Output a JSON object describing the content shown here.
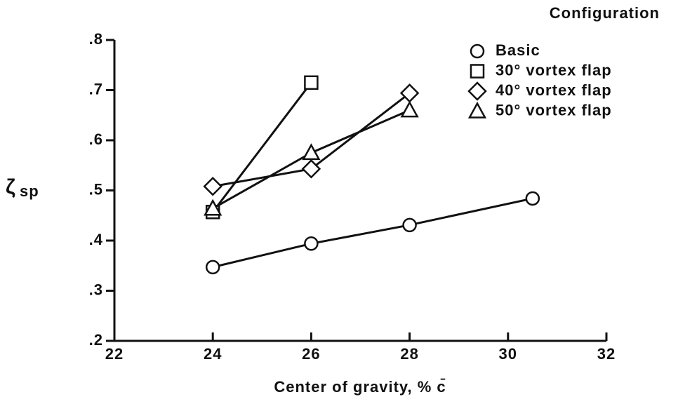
{
  "chart_data": {
    "type": "line",
    "xlabel": "Center of gravity, % c̄",
    "ylabel": {
      "symbol": "ζ",
      "subscript": "sp"
    },
    "legend_title": "Configuration",
    "legend": "upper right",
    "xlim": [
      22,
      32
    ],
    "xticks": [
      22,
      24,
      26,
      28,
      30,
      32
    ],
    "ylim": [
      0.2,
      0.8
    ],
    "yticks": [
      {
        "value": 0.2,
        "label": ".2"
      },
      {
        "value": 0.3,
        "label": ".3"
      },
      {
        "value": 0.4,
        "label": ".4"
      },
      {
        "value": 0.5,
        "label": ".5"
      },
      {
        "value": 0.6,
        "label": ".6"
      },
      {
        "value": 0.7,
        "label": ".7"
      },
      {
        "value": 0.8,
        "label": ".8"
      }
    ],
    "series": [
      {
        "name": "Basic",
        "marker": "circle",
        "color": "#111111",
        "x": [
          24,
          26,
          28,
          30.5
        ],
        "values": [
          0.347,
          0.394,
          0.431,
          0.484
        ]
      },
      {
        "name": "30° vortex flap",
        "marker": "square",
        "color": "#111111",
        "x": [
          24,
          26
        ],
        "values": [
          0.457,
          0.715
        ]
      },
      {
        "name": "40° vortex flap",
        "marker": "diamond",
        "color": "#111111",
        "x": [
          24,
          26,
          28
        ],
        "values": [
          0.508,
          0.543,
          0.694
        ]
      },
      {
        "name": "50° vortex flap",
        "marker": "triangle",
        "color": "#111111",
        "x": [
          24,
          26,
          28
        ],
        "values": [
          0.464,
          0.575,
          0.66
        ]
      }
    ]
  }
}
